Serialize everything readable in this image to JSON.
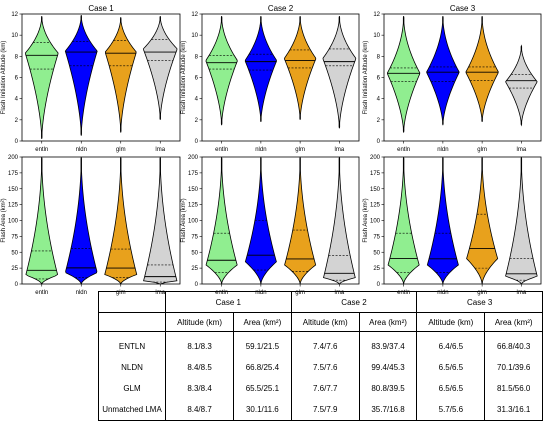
{
  "chart_data": [
    {
      "type": "violin",
      "title": "Case 1",
      "ylabel": "Flash Initiation Altitude (km)",
      "ylim": [
        0,
        12
      ],
      "yticks": [
        0,
        2,
        4,
        6,
        8,
        10,
        12
      ],
      "categories": [
        "entln",
        "nldn",
        "glm",
        "lma"
      ],
      "colors": [
        "#90ee90",
        "#0000ff",
        "#e8a11c",
        "#d3d3d3"
      ],
      "series": [
        {
          "name": "entln",
          "min": 0.2,
          "max": 11.8,
          "q1": 6.8,
          "median": 8.1,
          "q3": 9.3,
          "peak": 8.3,
          "width": 0.95
        },
        {
          "name": "nldn",
          "min": 0.5,
          "max": 11.9,
          "q1": 7.1,
          "median": 8.4,
          "q3": 9.4,
          "peak": 8.5,
          "width": 0.92
        },
        {
          "name": "glm",
          "min": 0.8,
          "max": 11.7,
          "q1": 7.1,
          "median": 8.3,
          "q3": 9.5,
          "peak": 8.4,
          "width": 0.9
        },
        {
          "name": "lma",
          "min": 2.0,
          "max": 11.8,
          "q1": 7.6,
          "median": 8.4,
          "q3": 9.6,
          "peak": 8.7,
          "width": 0.98
        }
      ]
    },
    {
      "type": "violin",
      "title": "Case 2",
      "ylabel": "Flash Initiation Altitude (km)",
      "ylim": [
        0,
        12
      ],
      "yticks": [
        0,
        2,
        4,
        6,
        8,
        10,
        12
      ],
      "categories": [
        "entln",
        "nldn",
        "glm",
        "lma"
      ],
      "colors": [
        "#90ee90",
        "#0000ff",
        "#e8a11c",
        "#d3d3d3"
      ],
      "series": [
        {
          "name": "entln",
          "min": 1.5,
          "max": 11.8,
          "q1": 6.8,
          "median": 7.4,
          "q3": 8.1,
          "peak": 7.6,
          "width": 0.92
        },
        {
          "name": "nldn",
          "min": 1.8,
          "max": 11.8,
          "q1": 6.7,
          "median": 7.5,
          "q3": 8.2,
          "peak": 7.6,
          "width": 0.92
        },
        {
          "name": "glm",
          "min": 2.0,
          "max": 11.8,
          "q1": 6.9,
          "median": 7.6,
          "q3": 8.6,
          "peak": 7.8,
          "width": 0.92
        },
        {
          "name": "lma",
          "min": 1.2,
          "max": 11.8,
          "q1": 7.1,
          "median": 7.5,
          "q3": 8.7,
          "peak": 7.8,
          "width": 0.96
        }
      ]
    },
    {
      "type": "violin",
      "title": "Case 3",
      "ylabel": "Flash Initiation Altitude (km)",
      "ylim": [
        0,
        12
      ],
      "yticks": [
        0,
        2,
        4,
        6,
        8,
        10,
        12
      ],
      "categories": [
        "entln",
        "nldn",
        "glm",
        "lma"
      ],
      "colors": [
        "#90ee90",
        "#0000ff",
        "#e8a11c",
        "#d3d3d3"
      ],
      "series": [
        {
          "name": "entln",
          "min": 0.8,
          "max": 11.8,
          "q1": 5.6,
          "median": 6.4,
          "q3": 6.9,
          "peak": 6.4,
          "width": 0.95
        },
        {
          "name": "nldn",
          "min": 1.5,
          "max": 11.8,
          "q1": 5.6,
          "median": 6.5,
          "q3": 7.0,
          "peak": 6.5,
          "width": 0.95
        },
        {
          "name": "glm",
          "min": 1.8,
          "max": 11.8,
          "q1": 5.7,
          "median": 6.5,
          "q3": 7.0,
          "peak": 6.5,
          "width": 0.95
        },
        {
          "name": "lma",
          "min": 1.5,
          "max": 9.0,
          "q1": 5.0,
          "median": 5.7,
          "q3": 6.3,
          "peak": 5.6,
          "width": 0.92
        }
      ]
    },
    {
      "type": "violin",
      "title": "",
      "ylabel": "Flash Area (km²)",
      "ylim": [
        0,
        200
      ],
      "yticks": [
        0,
        25,
        50,
        75,
        100,
        125,
        150,
        175,
        200
      ],
      "categories": [
        "entln",
        "nldn",
        "glm",
        "lma"
      ],
      "colors": [
        "#90ee90",
        "#0000ff",
        "#e8a11c",
        "#d3d3d3"
      ],
      "series": [
        {
          "name": "entln",
          "min": 0,
          "max": 200,
          "q1": 8,
          "median": 21.5,
          "q3": 52,
          "peak": 14,
          "width": 0.92
        },
        {
          "name": "nldn",
          "min": 0,
          "max": 200,
          "q1": 10,
          "median": 25.4,
          "q3": 56,
          "peak": 18,
          "width": 0.92
        },
        {
          "name": "glm",
          "min": 0,
          "max": 200,
          "q1": 10,
          "median": 25.1,
          "q3": 55,
          "peak": 15,
          "width": 0.92
        },
        {
          "name": "lma",
          "min": 0,
          "max": 200,
          "q1": 3,
          "median": 11.6,
          "q3": 30,
          "peak": 5,
          "width": 0.96
        }
      ]
    },
    {
      "type": "violin",
      "title": "",
      "ylabel": "Flash Area (km²)",
      "ylim": [
        0,
        200
      ],
      "yticks": [
        0,
        25,
        50,
        75,
        100,
        125,
        150,
        175,
        200
      ],
      "categories": [
        "entln",
        "nldn",
        "glm",
        "lma"
      ],
      "colors": [
        "#90ee90",
        "#0000ff",
        "#e8a11c",
        "#d3d3d3"
      ],
      "series": [
        {
          "name": "entln",
          "min": 0,
          "max": 200,
          "q1": 18,
          "median": 37.4,
          "q3": 80,
          "peak": 30,
          "width": 0.9
        },
        {
          "name": "nldn",
          "min": 0,
          "max": 200,
          "q1": 22,
          "median": 45.3,
          "q3": 100,
          "peak": 35,
          "width": 0.9
        },
        {
          "name": "glm",
          "min": 0,
          "max": 200,
          "q1": 20,
          "median": 39.5,
          "q3": 85,
          "peak": 30,
          "width": 0.9
        },
        {
          "name": "lma",
          "min": 0,
          "max": 200,
          "q1": 6,
          "median": 16.8,
          "q3": 45,
          "peak": 10,
          "width": 0.92
        }
      ]
    },
    {
      "type": "violin",
      "title": "",
      "ylabel": "Flash Area (km²)",
      "ylim": [
        0,
        200
      ],
      "yticks": [
        0,
        25,
        50,
        75,
        100,
        125,
        150,
        175,
        200
      ],
      "categories": [
        "entln",
        "nldn",
        "glm",
        "lma"
      ],
      "colors": [
        "#90ee90",
        "#0000ff",
        "#e8a11c",
        "#d3d3d3"
      ],
      "series": [
        {
          "name": "entln",
          "min": 0,
          "max": 200,
          "q1": 18,
          "median": 40.3,
          "q3": 80,
          "peak": 30,
          "width": 0.9
        },
        {
          "name": "nldn",
          "min": 0,
          "max": 200,
          "q1": 18,
          "median": 39.6,
          "q3": 80,
          "peak": 30,
          "width": 0.9
        },
        {
          "name": "glm",
          "min": 0,
          "max": 200,
          "q1": 25,
          "median": 56.0,
          "q3": 110,
          "peak": 40,
          "width": 0.9
        },
        {
          "name": "lma",
          "min": 0,
          "max": 200,
          "q1": 6,
          "median": 16.1,
          "q3": 40,
          "peak": 12,
          "width": 0.92
        }
      ]
    }
  ],
  "table": {
    "groups": [
      "Case 1",
      "Case 2",
      "Case 3"
    ],
    "sub": [
      "Altitude (km)",
      "Area (km²)",
      "Altitude (km)",
      "Area (km²)",
      "Altitude (km)",
      "Area (km²)"
    ],
    "rows": [
      {
        "label": "ENTLN",
        "cells": [
          "8.1/8.3",
          "59.1/21.5",
          "7.4/7.6",
          "83.9/37.4",
          "6.4/6.5",
          "66.8/40.3"
        ]
      },
      {
        "label": "NLDN",
        "cells": [
          "8.4/8.5",
          "66.8/25.4",
          "7.5/7.6",
          "99.4/45.3",
          "6.5/6.5",
          "70.1/39.6"
        ]
      },
      {
        "label": "GLM",
        "cells": [
          "8.3/8.4",
          "65.5/25.1",
          "7.6/7.7",
          "80.8/39.5",
          "6.5/6.5",
          "81.5/56.0"
        ]
      },
      {
        "label": "Unmatched LMA",
        "cells": [
          "8.4/8.7",
          "30.1/11.6",
          "7.5/7.9",
          "35.7/16.8",
          "5.7/5.6",
          "31.3/16.1"
        ]
      }
    ]
  }
}
